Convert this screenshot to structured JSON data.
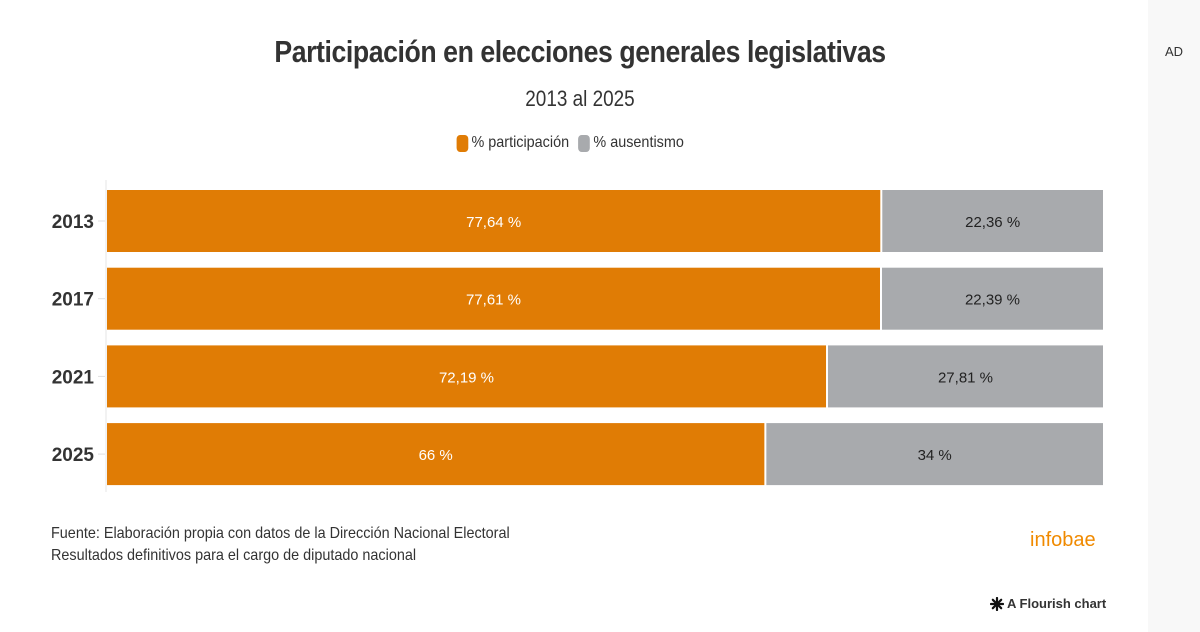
{
  "side_panel": {
    "ad_label": "AD"
  },
  "footer": {
    "source": "Fuente: Elaboración propia con datos de la Dirección Nacional Electoral",
    "note": "Resultados definitivos para el cargo de diputado nacional",
    "brand": "infobae",
    "flourish_label": "A Flourish chart",
    "flourish_icon": "asterisk-icon"
  },
  "colors": {
    "participacion": "#e07c05",
    "ausentismo": "#a8aaad",
    "brand": "#f08a00"
  },
  "chart_data": {
    "type": "bar",
    "orientation": "horizontal",
    "stacked": true,
    "title": "Participación en elecciones generales legislativas",
    "subtitle": "2013 al 2025",
    "xlabel": "",
    "ylabel": "",
    "xlim": [
      0,
      100
    ],
    "grid": false,
    "legend_position": "top-center",
    "categories": [
      "2013",
      "2017",
      "2021",
      "2025"
    ],
    "series": [
      {
        "name": "% participación",
        "color": "#e07c05",
        "values": [
          77.64,
          77.61,
          72.19,
          66
        ],
        "labels": [
          "77,64 %",
          "77,61 %",
          "72,19 %",
          "66 %"
        ],
        "label_color": "#ffffff"
      },
      {
        "name": "% ausentismo",
        "color": "#a8aaad",
        "values": [
          22.36,
          22.39,
          27.81,
          34
        ],
        "labels": [
          "22,36 %",
          "22,39 %",
          "27,81 %",
          "34 %"
        ],
        "label_color": "#222222"
      }
    ]
  }
}
